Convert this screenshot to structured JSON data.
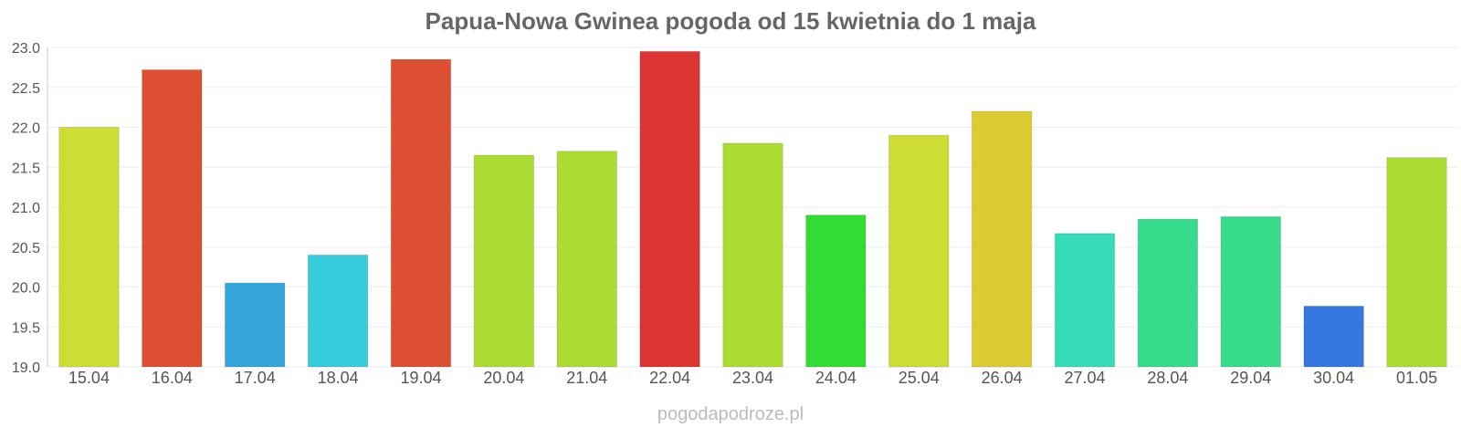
{
  "chart_data": {
    "type": "bar",
    "title": "Papua-Nowa Gwinea pogoda od 15 kwietnia do 1 maja",
    "categories": [
      "15.04",
      "16.04",
      "17.04",
      "18.04",
      "19.04",
      "20.04",
      "21.04",
      "22.04",
      "23.04",
      "24.04",
      "25.04",
      "26.04",
      "27.04",
      "28.04",
      "29.04",
      "30.04",
      "01.05"
    ],
    "values": [
      22.0,
      22.72,
      20.05,
      20.4,
      22.85,
      21.65,
      21.7,
      22.95,
      21.8,
      20.9,
      21.9,
      22.2,
      20.67,
      20.85,
      20.88,
      19.76,
      21.62
    ],
    "colors": [
      "#cddd33",
      "#dc4f32",
      "#34a5d8",
      "#36ccdc",
      "#dc4f32",
      "#acdc33",
      "#acdc33",
      "#dc3432",
      "#acdc33",
      "#33dc33",
      "#cddd33",
      "#dccb33",
      "#36dcb7",
      "#36dc8b",
      "#36dc8b",
      "#3577dc",
      "#acdc33"
    ],
    "ylim": [
      19.0,
      23.0
    ],
    "yticks": [
      "19.0",
      "19.5",
      "20.0",
      "20.5",
      "21.0",
      "21.5",
      "22.0",
      "22.5",
      "23.0"
    ],
    "xlabel": "",
    "ylabel": "",
    "grid": true,
    "legend": "none"
  },
  "watermark": "pogodapodroze.pl"
}
